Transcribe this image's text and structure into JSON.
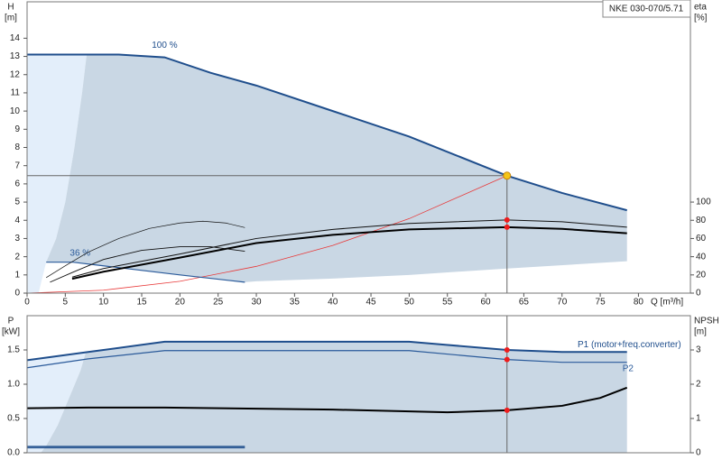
{
  "title": "NKE 030-070/5.71",
  "chart_data": [
    {
      "type": "line",
      "ylabel": "H",
      "yunit": "[m]",
      "y2label": "eta",
      "y2unit": "[%]",
      "xlabel": "Q [m³/h]",
      "xlim": [
        0,
        86.8
      ],
      "xticks": [
        0,
        5,
        10,
        15,
        20,
        25,
        30,
        35,
        40,
        45,
        50,
        55,
        60,
        65,
        70,
        75,
        80
      ],
      "ylim": [
        0,
        16
      ],
      "yticks": [
        0,
        1,
        2,
        3,
        4,
        5,
        6,
        7,
        8,
        9,
        10,
        11,
        12,
        13,
        14
      ],
      "y2lim": [
        0,
        320
      ],
      "y2ticks": [
        0,
        20,
        40,
        60,
        80,
        100
      ],
      "series": [
        {
          "style": "area",
          "color": "#e3eefa",
          "x": [
            0,
            7.8,
            7.2,
            6.2,
            5,
            3.8,
            2.5,
            1.5,
            0
          ],
          "values": [
            13.1,
            13.1,
            11,
            8,
            5,
            3,
            1.7,
            0,
            0
          ]
        },
        {
          "style": "area",
          "color": "#c9d7e4",
          "x": [
            7.8,
            12,
            18,
            24,
            30,
            40,
            50,
            62.8,
            70,
            78.5,
            78.5,
            62.8,
            50,
            40,
            30,
            28.5,
            20,
            10,
            6,
            2.5,
            3.8,
            5,
            6.2,
            7.2
          ],
          "values": [
            13.1,
            13.1,
            12.95,
            12.1,
            11.4,
            10.0,
            8.6,
            6.45,
            5.5,
            4.55,
            1.75,
            1.35,
            1.0,
            0.8,
            0.65,
            0.6,
            1.0,
            1.5,
            1.7,
            1.7,
            3,
            5,
            8,
            11
          ]
        },
        {
          "style": "line",
          "color": "#e83a3a",
          "width": 0.8,
          "x": [
            0,
            10,
            20,
            30,
            40,
            50,
            62.8
          ],
          "values": [
            0,
            0.16,
            0.65,
            1.47,
            2.62,
            4.09,
            6.45
          ]
        },
        {
          "style": "line",
          "name": "36 %",
          "color": "#2a5a9a",
          "width": 1.2,
          "x": [
            2.5,
            6,
            10,
            20,
            28.5
          ],
          "values": [
            1.7,
            1.7,
            1.5,
            1.0,
            0.6
          ]
        },
        {
          "style": "line",
          "name": "100 %",
          "color": "#1f4e8c",
          "width": 2,
          "x": [
            0,
            7.8,
            12,
            18,
            24,
            30,
            40,
            50,
            62.8,
            70,
            78.5
          ],
          "values": [
            13.1,
            13.1,
            13.1,
            12.95,
            12.1,
            11.4,
            10.0,
            8.6,
            6.45,
            5.5,
            4.55
          ]
        },
        {
          "style": "line",
          "axis": "y2",
          "color": "#111111",
          "width": 1,
          "x": [
            5.9,
            10,
            20,
            30,
            40,
            50,
            62.8,
            70,
            78.5
          ],
          "values": [
            17.6,
            27,
            43,
            60,
            70,
            76.5,
            80.4,
            78.4,
            72.5
          ]
        },
        {
          "style": "line",
          "axis": "y2",
          "color": "#000000",
          "width": 2,
          "x": [
            5.9,
            10,
            20,
            30,
            40,
            50,
            62.8,
            70,
            78.5
          ],
          "values": [
            15.7,
            23.5,
            39,
            55,
            64,
            70,
            72.5,
            70.6,
            65.7
          ]
        },
        {
          "style": "line",
          "axis": "y2",
          "color": "#111111",
          "width": 0.7,
          "x": [
            2.5,
            5,
            8,
            12,
            16,
            20,
            23,
            26,
            28.5
          ],
          "values": [
            17,
            30,
            45,
            60,
            71,
            77,
            79,
            77,
            72
          ]
        },
        {
          "style": "line",
          "axis": "y2",
          "color": "#111111",
          "width": 0.9,
          "x": [
            3,
            6,
            10,
            15,
            20,
            24,
            28.5
          ],
          "values": [
            12,
            23,
            37,
            47,
            51,
            51,
            46
          ]
        },
        {
          "style": "point",
          "color": "#f5c518",
          "crosshair": "both",
          "x": [
            62.8
          ],
          "values": [
            6.45
          ]
        },
        {
          "style": "point",
          "axis": "y2",
          "color": "#ee1c1c",
          "x": [
            62.8,
            62.8
          ],
          "values": [
            80.4,
            72.5
          ]
        }
      ]
    },
    {
      "type": "line",
      "ylabel": "P",
      "yunit": "[kW]",
      "y2label": "NPSH",
      "y2unit": "[m]",
      "xlim": [
        0,
        86.8
      ],
      "ylim": [
        0,
        2.0
      ],
      "yticks": [
        {
          "value": 0,
          "label": "0.0"
        },
        0.5,
        {
          "value": 1,
          "label": "1.0"
        },
        1.5
      ],
      "y2lim": [
        0,
        4
      ],
      "y2ticks": [
        0,
        1,
        2,
        3
      ],
      "series": [
        {
          "style": "area",
          "color": "#e3eefa",
          "x": [
            0,
            7.7,
            7,
            5.5,
            4,
            2.5,
            1.8,
            0
          ],
          "values": [
            1.35,
            1.47,
            1.2,
            0.8,
            0.4,
            0.1,
            0,
            0
          ]
        },
        {
          "style": "area",
          "color": "#c9d7e4",
          "x": [
            7.7,
            18,
            50,
            62.8,
            70,
            78.5,
            78.5,
            1.8,
            2.5,
            4,
            5.5,
            7
          ],
          "values": [
            1.47,
            1.62,
            1.62,
            1.5,
            1.47,
            1.47,
            0,
            0,
            0.1,
            0.4,
            0.8,
            1.2
          ]
        },
        {
          "style": "line",
          "color": "#1f4e8c",
          "width": 1.5,
          "x": [
            0,
            28.5
          ],
          "values": [
            0.09,
            0.09
          ]
        },
        {
          "style": "line",
          "color": "#1f4e8c",
          "width": 1,
          "x": [
            0,
            28.5
          ],
          "values": [
            0.07,
            0.07
          ]
        },
        {
          "style": "line",
          "name": "P1 (motor+freq.converter)",
          "color": "#1f4e8c",
          "width": 2,
          "x": [
            0,
            8,
            18,
            50,
            62.8,
            70,
            78.5
          ],
          "values": [
            1.35,
            1.47,
            1.62,
            1.62,
            1.5,
            1.47,
            1.47
          ]
        },
        {
          "style": "line",
          "name": "P2",
          "color": "#2a5a9a",
          "width": 1.2,
          "x": [
            0,
            8,
            18,
            50,
            62.8,
            70,
            78.5
          ],
          "values": [
            1.24,
            1.37,
            1.49,
            1.49,
            1.36,
            1.32,
            1.32
          ]
        },
        {
          "style": "line",
          "axis": "y2",
          "color": "#000000",
          "width": 2,
          "x": [
            0,
            8,
            18,
            40,
            55,
            62.8,
            70,
            75,
            78.5
          ],
          "values": [
            1.3,
            1.32,
            1.32,
            1.26,
            1.18,
            1.24,
            1.37,
            1.6,
            1.9
          ]
        },
        {
          "style": "point",
          "color": "#ee1c1c",
          "crosshair": "vertical",
          "x": [
            62.8,
            62.8
          ],
          "values": [
            1.5,
            1.36
          ]
        },
        {
          "style": "point",
          "axis": "y2",
          "color": "#ee1c1c",
          "x": [
            62.8
          ],
          "values": [
            1.24
          ]
        }
      ]
    }
  ]
}
